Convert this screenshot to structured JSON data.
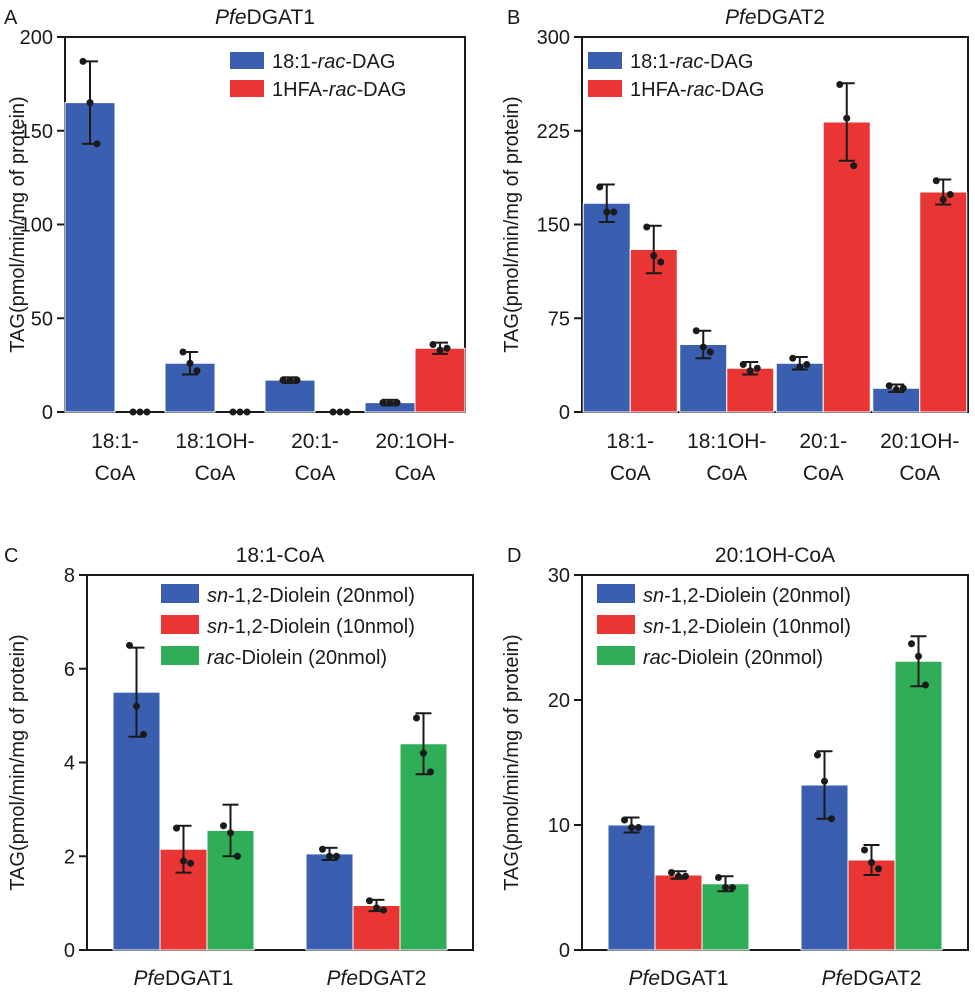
{
  "colors": {
    "blue": "#3a5eb0",
    "red": "#ea3535",
    "green": "#2fae57"
  },
  "chart_data": [
    {
      "panel": "A",
      "type": "bar",
      "title_italic": "Pfe",
      "title_rest": "DGAT1",
      "ylabel": "TAG(pmol/min/mg of protein)",
      "ylim": [
        0,
        200
      ],
      "yticks": [
        "0",
        "50",
        "100",
        "150",
        "200"
      ],
      "ytick_values": [
        0,
        50,
        100,
        150,
        200
      ],
      "categories": [
        {
          "line1": "18:1-",
          "line2": "CoA",
          "line1_italic": "",
          "line1_rest": "18:1-"
        },
        {
          "line1": "18:1OH-",
          "line2": "CoA",
          "line1_italic": "",
          "line1_rest": "18:1OH-"
        },
        {
          "line1": "20:1-",
          "line2": "CoA",
          "line1_italic": "",
          "line1_rest": "20:1-"
        },
        {
          "line1": "20:1OH-",
          "line2": "CoA",
          "line1_italic": "",
          "line1_rest": "20:1OH-"
        }
      ],
      "legend_position": "top-right",
      "series": [
        {
          "name": "18:1-rac-DAG",
          "pre": "18:1-",
          "ital": "rac",
          "post": "-DAG",
          "color": "#3a5eb0",
          "values": [
            165,
            26,
            17,
            5
          ],
          "err": [
            22,
            6,
            1.5,
            1.5
          ],
          "points": [
            [
              187,
              165,
              143
            ],
            [
              32,
              26,
              22
            ],
            [
              17,
              17,
              17
            ],
            [
              5,
              5,
              5
            ]
          ]
        },
        {
          "name": "1HFA-rac-DAG",
          "pre": "1HFA-",
          "ital": "rac",
          "post": "-DAG",
          "color": "#ea3535",
          "values": [
            0,
            0,
            0,
            34
          ],
          "err": [
            0,
            0,
            0,
            3
          ],
          "points": [
            [
              0,
              0,
              0
            ],
            [
              0,
              0,
              0
            ],
            [
              0,
              0,
              0
            ],
            [
              36,
              33,
              34
            ]
          ]
        }
      ]
    },
    {
      "panel": "B",
      "type": "bar",
      "title_italic": "Pfe",
      "title_rest": "DGAT2",
      "ylabel": "TAG(pmol/min/mg of protein)",
      "ylim": [
        0,
        300
      ],
      "yticks": [
        "0",
        "75",
        "150",
        "225",
        "300"
      ],
      "ytick_values": [
        0,
        75,
        150,
        225,
        300
      ],
      "categories": [
        {
          "line1": "18:1-",
          "line2": "CoA",
          "line1_italic": "",
          "line1_rest": "18:1-"
        },
        {
          "line1": "18:1OH-",
          "line2": "CoA",
          "line1_italic": "",
          "line1_rest": "18:1OH-"
        },
        {
          "line1": "20:1-",
          "line2": "CoA",
          "line1_italic": "",
          "line1_rest": "20:1-"
        },
        {
          "line1": "20:1OH-",
          "line2": "CoA",
          "line1_italic": "",
          "line1_rest": "20:1OH-"
        }
      ],
      "legend_position": "top-left",
      "series": [
        {
          "name": "18:1-rac-DAG",
          "pre": "18:1-",
          "ital": "rac",
          "post": "-DAG",
          "color": "#3a5eb0",
          "values": [
            167,
            54,
            39,
            19
          ],
          "err": [
            15,
            11,
            5,
            3
          ],
          "points": [
            [
              180,
              160,
              160
            ],
            [
              65,
              52,
              48
            ],
            [
              43,
              36,
              38
            ],
            [
              21,
              18,
              19
            ]
          ]
        },
        {
          "name": "1HFA-rac-DAG",
          "pre": "1HFA-",
          "ital": "rac",
          "post": "-DAG",
          "color": "#ea3535",
          "values": [
            130,
            35,
            232,
            176
          ],
          "err": [
            19,
            5,
            31,
            10
          ],
          "points": [
            [
              148,
              125,
              120
            ],
            [
              38,
              33,
              35
            ],
            [
              262,
              235,
              197
            ],
            [
              185,
              170,
              174
            ]
          ]
        }
      ]
    },
    {
      "panel": "C",
      "type": "bar",
      "title_italic": "",
      "title_rest": "18:1-CoA",
      "ylabel": "TAG(pmol/min/mg of protein)",
      "ylim": [
        0,
        8
      ],
      "yticks": [
        "0",
        "2",
        "4",
        "6",
        "8"
      ],
      "ytick_values": [
        0,
        2,
        4,
        6,
        8
      ],
      "categories": [
        {
          "line1": "PfeDGAT1",
          "line2": "",
          "line1_italic": "Pfe",
          "line1_rest": "DGAT1"
        },
        {
          "line1": "PfeDGAT2",
          "line2": "",
          "line1_italic": "Pfe",
          "line1_rest": "DGAT2"
        }
      ],
      "legend_position": "top-right",
      "series": [
        {
          "name": "sn-1,2-Diolein (20nmol)",
          "pre": "",
          "ital": "sn",
          "post": "-1,2-Diolein (20nmol)",
          "color": "#3a5eb0",
          "values": [
            5.5,
            2.05
          ],
          "err": [
            0.95,
            0.13
          ],
          "points": [
            [
              6.5,
              5.2,
              4.6
            ],
            [
              2.15,
              2.0,
              2.0
            ]
          ]
        },
        {
          "name": "sn-1,2-Diolein (10nmol)",
          "pre": "",
          "ital": "sn",
          "post": "-1,2-Diolein (10nmol)",
          "color": "#ea3535",
          "values": [
            2.15,
            0.95
          ],
          "err": [
            0.5,
            0.12
          ],
          "points": [
            [
              2.6,
              1.9,
              1.85
            ],
            [
              1.05,
              0.9,
              0.85
            ]
          ]
        },
        {
          "name": "rac-Diolein (20nmol)",
          "pre": "",
          "ital": "rac",
          "post": "-Diolein (20nmol)",
          "color": "#2fae57",
          "values": [
            2.55,
            4.4
          ],
          "err": [
            0.55,
            0.65
          ],
          "points": [
            [
              2.65,
              2.5,
              2.0
            ],
            [
              4.95,
              4.2,
              3.8
            ]
          ]
        }
      ]
    },
    {
      "panel": "D",
      "type": "bar",
      "title_italic": "",
      "title_rest": "20:1OH-CoA",
      "ylabel": "TAG(pmol/min/mg of protein)",
      "ylim": [
        0,
        30
      ],
      "yticks": [
        "0",
        "10",
        "20",
        "30"
      ],
      "ytick_values": [
        0,
        10,
        20,
        30
      ],
      "categories": [
        {
          "line1": "PfeDGAT1",
          "line2": "",
          "line1_italic": "Pfe",
          "line1_rest": "DGAT1"
        },
        {
          "line1": "PfeDGAT2",
          "line2": "",
          "line1_italic": "Pfe",
          "line1_rest": "DGAT2"
        }
      ],
      "legend_position": "top-left",
      "series": [
        {
          "name": "sn-1,2-Diolein (20nmol)",
          "pre": "",
          "ital": "sn",
          "post": "-1,2-Diolein (20nmol)",
          "color": "#3a5eb0",
          "values": [
            10.0,
            13.2
          ],
          "err": [
            0.6,
            2.7
          ],
          "points": [
            [
              10.4,
              9.8,
              9.8
            ],
            [
              15.6,
              13.5,
              10.5
            ]
          ]
        },
        {
          "name": "sn-1,2-Diolein (10nmol)",
          "pre": "",
          "ital": "sn",
          "post": "-1,2-Diolein (10nmol)",
          "color": "#ea3535",
          "values": [
            6.0,
            7.2
          ],
          "err": [
            0.3,
            1.2
          ],
          "points": [
            [
              6.2,
              5.9,
              5.9
            ],
            [
              8.0,
              7.0,
              6.5
            ]
          ]
        },
        {
          "name": "rac-Diolein (20nmol)",
          "pre": "",
          "ital": "rac",
          "post": "-Diolein (20nmol)",
          "color": "#2fae57",
          "values": [
            5.3,
            23.1
          ],
          "err": [
            0.6,
            2.0
          ],
          "points": [
            [
              5.8,
              5.0,
              5.0
            ],
            [
              24.5,
              23.5,
              21.2
            ]
          ]
        }
      ]
    }
  ]
}
